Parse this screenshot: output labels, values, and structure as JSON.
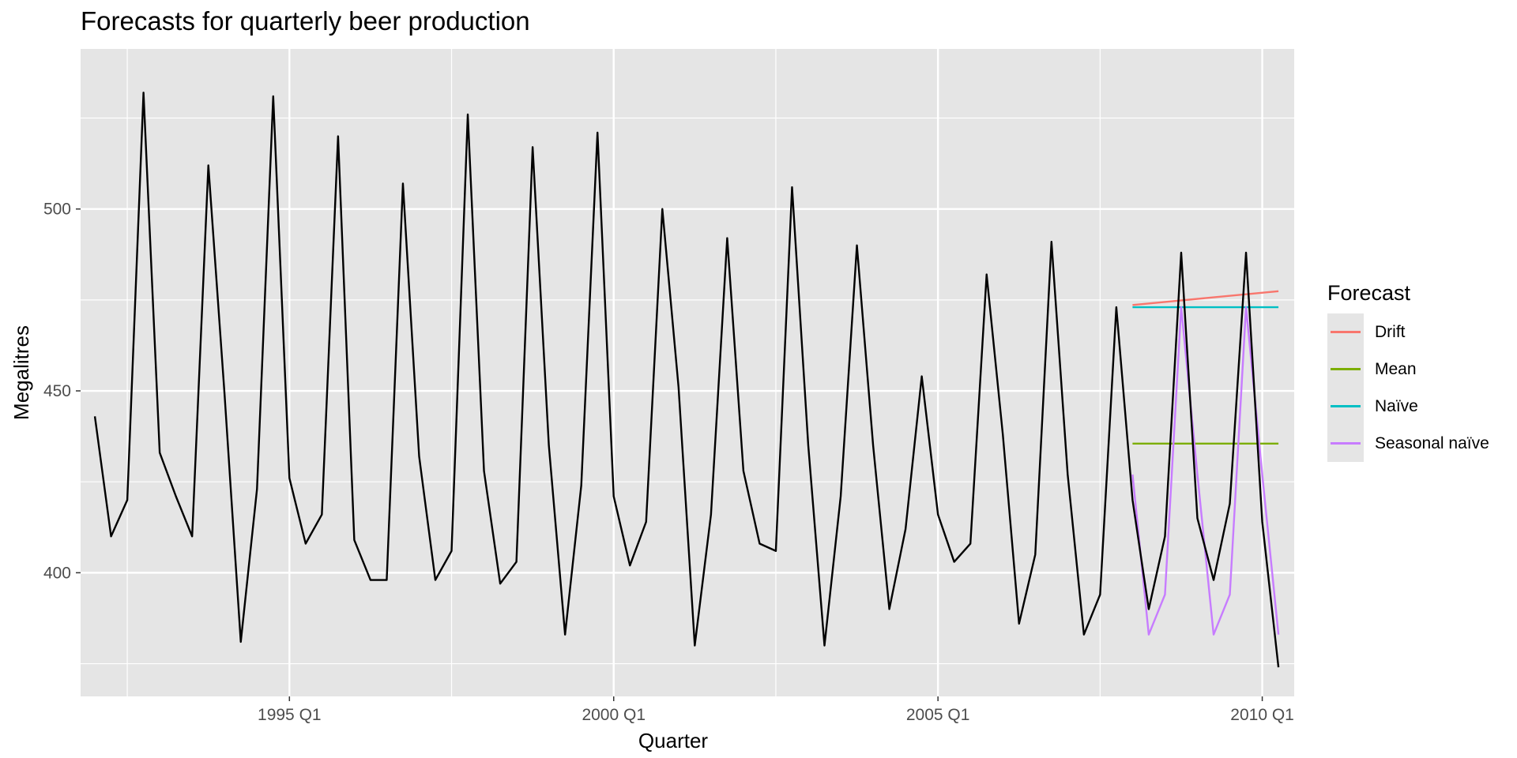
{
  "chart_data": {
    "type": "line",
    "title": "Forecasts for quarterly beer production",
    "xlabel": "Quarter",
    "ylabel": "Megalitres",
    "x_ticks": [
      "1995 Q1",
      "2000 Q1",
      "2005 Q1",
      "2010 Q1"
    ],
    "y_ticks": [
      400,
      450,
      500
    ],
    "ylim": [
      366,
      544
    ],
    "grid": true,
    "legend": {
      "title": "Forecast",
      "placement": "right"
    },
    "history": {
      "start": "1992 Q1",
      "values": [
        443,
        410,
        420,
        532,
        433,
        421,
        410,
        512,
        449,
        381,
        423,
        531,
        426,
        408,
        416,
        520,
        409,
        398,
        398,
        507,
        432,
        398,
        406,
        526,
        428,
        397,
        403,
        517,
        435,
        383,
        424,
        521,
        421,
        402,
        414,
        500,
        451,
        380,
        416,
        492,
        428,
        408,
        406,
        506,
        435,
        380,
        421,
        490,
        435,
        390,
        412,
        454,
        416,
        403,
        408,
        482,
        438,
        386,
        405,
        491,
        427,
        383,
        394,
        473,
        420,
        390,
        410,
        488,
        415,
        398,
        419,
        488,
        414,
        374
      ]
    },
    "series": [
      {
        "name": "Drift",
        "color": "#F8766D",
        "start": "2008 Q1",
        "values": [
          473.6,
          473.8,
          474.0,
          474.2,
          474.4,
          474.6,
          474.8,
          475.0,
          475.2,
          475.4,
          475.6,
          475.8,
          476.0,
          476.2,
          476.4,
          476.6,
          476.8,
          477.0,
          477.2,
          477.4
        ]
      },
      {
        "name": "Mean",
        "color": "#7CAE00",
        "start": "2008 Q1",
        "values": [
          435.5,
          435.5,
          435.5,
          435.5,
          435.5,
          435.5,
          435.5,
          435.5,
          435.5,
          435.5
        ]
      },
      {
        "name": "Naïve",
        "color": "#00BFC4",
        "start": "2008 Q1",
        "values": [
          473,
          473,
          473,
          473,
          473,
          473,
          473,
          473,
          473,
          473
        ]
      },
      {
        "name": "Seasonal naïve",
        "color": "#C77CFF",
        "start": "2008 Q1",
        "values": [
          427,
          383,
          394,
          473,
          427,
          383,
          394,
          473,
          427,
          383
        ]
      }
    ]
  }
}
